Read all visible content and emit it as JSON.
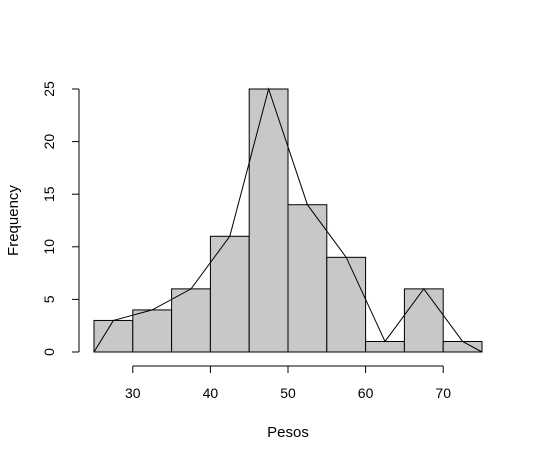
{
  "chart_data": {
    "type": "bar",
    "subtype": "histogram-with-frequency-polygon",
    "title": "",
    "xlabel": "Pesos",
    "ylabel": "Frequency",
    "bin_edges": [
      25,
      30,
      35,
      40,
      45,
      50,
      55,
      60,
      65,
      70,
      75
    ],
    "values": [
      3,
      4,
      6,
      11,
      25,
      14,
      9,
      1,
      6,
      1
    ],
    "polygon": {
      "x": [
        25,
        27.5,
        32.5,
        37.5,
        42.5,
        47.5,
        52.5,
        57.5,
        62.5,
        67.5,
        72.5,
        75
      ],
      "y": [
        0,
        3,
        4,
        6,
        11,
        25,
        14,
        9,
        1,
        6,
        1,
        0
      ]
    },
    "xlim": [
      25,
      75
    ],
    "ylim": [
      0,
      25
    ],
    "xticks": [
      30,
      40,
      50,
      60,
      70
    ],
    "yticks": [
      0,
      5,
      10,
      15,
      20,
      25
    ],
    "bar_fill": "#c8c8c8",
    "line_color": "#000000",
    "grid": false
  }
}
